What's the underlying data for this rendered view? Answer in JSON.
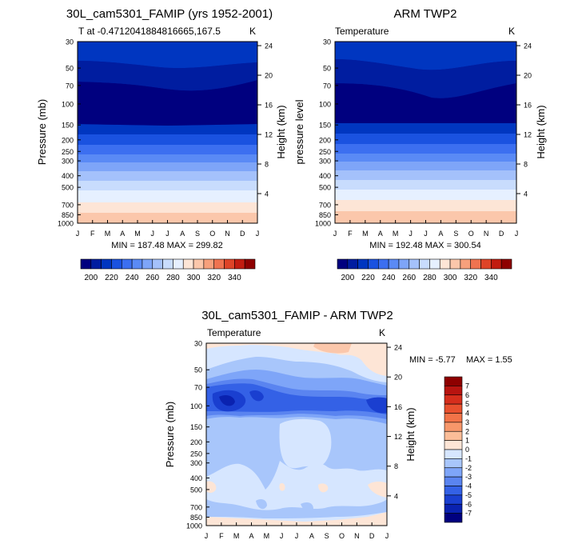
{
  "chart_data": [
    {
      "type": "heatmap",
      "id": "cam",
      "title": "30L_cam5301_FAMIP (yrs 1952-2001)",
      "subtitle_left": "T at -0.4712041884816665,167.5",
      "subtitle_right": "K",
      "ylabel": "Pressure (mb)",
      "ylabel_right": "Height (km)",
      "x_ticks": [
        "J",
        "F",
        "M",
        "A",
        "M",
        "J",
        "J",
        "A",
        "S",
        "O",
        "N",
        "D",
        "J"
      ],
      "y_ticks": [
        "30",
        "50",
        "70",
        "100",
        "150",
        "200",
        "250",
        "300",
        "400",
        "500",
        "700",
        "850",
        "1000"
      ],
      "height_ticks": [
        "24",
        "20",
        "16",
        "12",
        "8",
        "4"
      ],
      "stats": "MIN = 187.48 MAX = 299.82",
      "min": 187.48,
      "max": 299.82,
      "colorbar_labels": [
        "200",
        "220",
        "240",
        "260",
        "280",
        "300",
        "320",
        "340"
      ],
      "contour_levels": [
        190,
        200,
        210,
        220,
        230,
        240,
        250,
        260,
        270,
        280,
        290,
        300,
        310,
        320,
        330,
        340,
        350
      ],
      "colors": [
        "#00007f",
        "#001da0",
        "#0036c0",
        "#1a52e0",
        "#3c6ff0",
        "#5a8af5",
        "#7ea5f8",
        "#a4c1fb",
        "#c8dcfd",
        "#e6f0ff",
        "#fde5d6",
        "#fbc7ab",
        "#f7a07c",
        "#ef7350",
        "#de4428",
        "#c21c10",
        "#8e0000"
      ]
    },
    {
      "type": "heatmap",
      "id": "arm",
      "title": "ARM TWP2",
      "subtitle_left": "Temperature",
      "subtitle_right": "K",
      "ylabel": "pressure level",
      "ylabel_right": "Height (km)",
      "x_ticks": [
        "J",
        "F",
        "M",
        "A",
        "M",
        "J",
        "J",
        "A",
        "S",
        "O",
        "N",
        "D",
        "J"
      ],
      "y_ticks": [
        "30",
        "50",
        "70",
        "100",
        "150",
        "200",
        "250",
        "300",
        "400",
        "500",
        "700",
        "850",
        "1000"
      ],
      "height_ticks": [
        "24",
        "20",
        "16",
        "12",
        "8",
        "4"
      ],
      "stats": "MIN = 192.48 MAX = 300.54",
      "min": 192.48,
      "max": 300.54,
      "colorbar_labels": [
        "200",
        "220",
        "240",
        "260",
        "280",
        "300",
        "320",
        "340"
      ]
    },
    {
      "type": "heatmap",
      "id": "diff",
      "title": "30L_cam5301_FAMIP - ARM TWP2",
      "subtitle_left": "Temperature",
      "subtitle_right": "K",
      "ylabel": "Pressure (mb)",
      "ylabel_right": "Height (km)",
      "x_ticks": [
        "J",
        "F",
        "M",
        "A",
        "M",
        "J",
        "J",
        "A",
        "S",
        "O",
        "N",
        "D",
        "J"
      ],
      "y_ticks": [
        "30",
        "50",
        "70",
        "100",
        "150",
        "200",
        "250",
        "300",
        "400",
        "500",
        "700",
        "850",
        "1000"
      ],
      "height_ticks": [
        "24",
        "20",
        "16",
        "12",
        "8",
        "4"
      ],
      "stats_min": "MIN = -5.77",
      "stats_max": "MAX = 1.55",
      "min": -5.77,
      "max": 1.55,
      "colorbar_labels": [
        "7",
        "6",
        "5",
        "4",
        "3",
        "2",
        "1",
        "0",
        "-1",
        "-2",
        "-3",
        "-4",
        "-5",
        "-6",
        "-7"
      ],
      "colors": [
        "#8e0000",
        "#b81410",
        "#d62e1c",
        "#e8502e",
        "#f27348",
        "#f7976a",
        "#fbbd98",
        "#fde5d6",
        "#d6e6ff",
        "#a8c6fb",
        "#7ea5f8",
        "#5a84f0",
        "#3461e6",
        "#1a3fd0",
        "#0a22b0",
        "#00007f"
      ]
    }
  ]
}
